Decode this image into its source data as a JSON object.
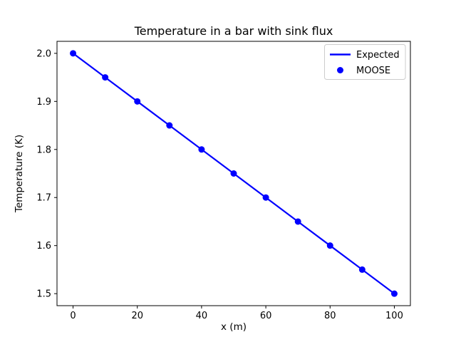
{
  "figure": {
    "background": "#ffffff",
    "frame_color": "#000000",
    "accent_color": "#0000ff"
  },
  "chart_data": {
    "type": "line",
    "title": "Temperature in a bar with sink flux",
    "xlabel": "x (m)",
    "ylabel": "Temperature (K)",
    "x": [
      0,
      10,
      20,
      30,
      40,
      50,
      60,
      70,
      80,
      90,
      100
    ],
    "series": [
      {
        "name": "Expected",
        "style": "line",
        "color": "#0000ff",
        "values": [
          2.0,
          1.95,
          1.9,
          1.85,
          1.8,
          1.75,
          1.7,
          1.65,
          1.6,
          1.55,
          1.5
        ]
      },
      {
        "name": "MOOSE",
        "style": "scatter",
        "color": "#0000ff",
        "values": [
          2.0,
          1.95,
          1.9,
          1.85,
          1.8,
          1.75,
          1.7,
          1.65,
          1.6,
          1.55,
          1.5
        ]
      }
    ],
    "xticks": [
      0,
      20,
      40,
      60,
      80,
      100
    ],
    "xtick_labels": [
      "0",
      "20",
      "40",
      "60",
      "80",
      "100"
    ],
    "yticks": [
      1.5,
      1.6,
      1.7,
      1.8,
      1.9,
      2.0
    ],
    "ytick_labels": [
      "1.5",
      "1.6",
      "1.7",
      "1.8",
      "1.9",
      "2.0"
    ],
    "xlim": [
      -5,
      105
    ],
    "ylim": [
      1.475,
      2.025
    ],
    "grid": false,
    "legend_position": "upper right"
  }
}
